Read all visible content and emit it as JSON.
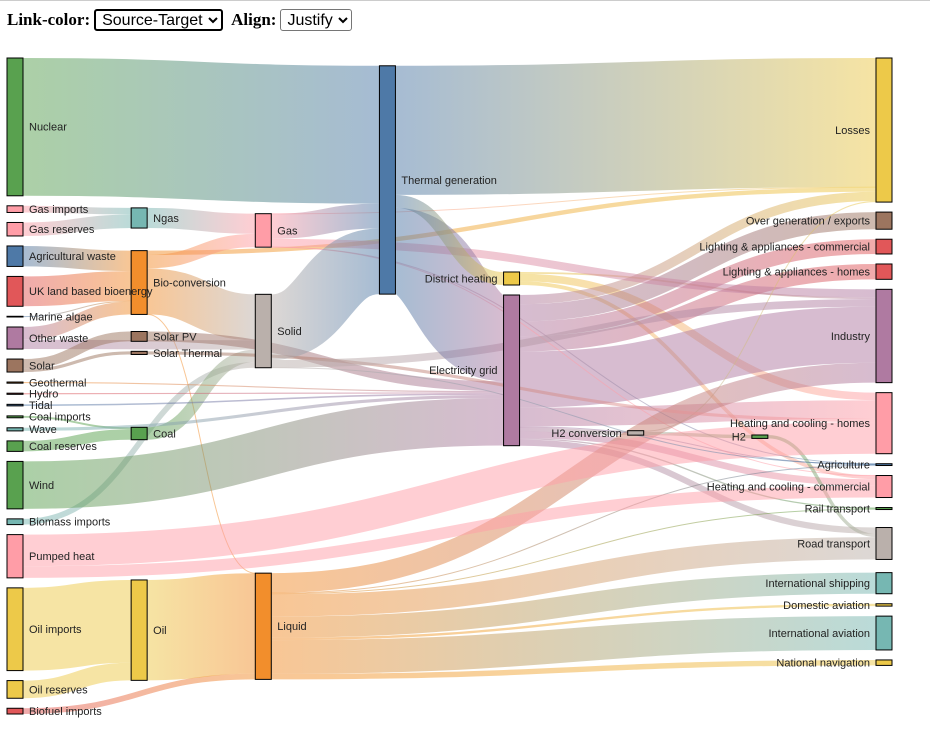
{
  "controls": {
    "link_color_label": "Link-color:",
    "link_color_value": "Source-Target",
    "align_label": "Align:",
    "align_value": "Justify"
  },
  "chart_data": {
    "type": "sankey",
    "link_color": "source-target",
    "align": "justify",
    "nodes": [
      {
        "name": "Nuclear",
        "color": "#59a14f"
      },
      {
        "name": "Gas imports",
        "color": "#ff9da7"
      },
      {
        "name": "Agricultural waste",
        "color": "#4e79a7"
      },
      {
        "name": "Gas reserves",
        "color": "#ff9da7"
      },
      {
        "name": "Marine algae",
        "color": "#4e79a7"
      },
      {
        "name": "UK land based bioenergy",
        "color": "#e15759"
      },
      {
        "name": "Biomass imports",
        "color": "#76b7b2"
      },
      {
        "name": "Other waste",
        "color": "#af7aa1"
      },
      {
        "name": "Coal imports",
        "color": "#59a14f"
      },
      {
        "name": "Coal reserves",
        "color": "#59a14f"
      },
      {
        "name": "Geothermal",
        "color": "#f28e2c"
      },
      {
        "name": "Pumped heat",
        "color": "#ff9da7"
      },
      {
        "name": "Solar",
        "color": "#9c755f"
      },
      {
        "name": "Hydro",
        "color": "#e15759"
      },
      {
        "name": "Tidal",
        "color": "#4e79a7"
      },
      {
        "name": "Wave",
        "color": "#76b7b2"
      },
      {
        "name": "Wind",
        "color": "#59a14f"
      },
      {
        "name": "Biofuel imports",
        "color": "#e15759"
      },
      {
        "name": "Oil imports",
        "color": "#edc949"
      },
      {
        "name": "Oil reserves",
        "color": "#edc949"
      },
      {
        "name": "Ngas",
        "color": "#76b7b2"
      },
      {
        "name": "Bio-conversion",
        "color": "#f28e2c"
      },
      {
        "name": "Coal",
        "color": "#59a14f"
      },
      {
        "name": "Solar PV",
        "color": "#9c755f"
      },
      {
        "name": "Solar Thermal",
        "color": "#9c755f"
      },
      {
        "name": "Oil",
        "color": "#edc949"
      },
      {
        "name": "Gas",
        "color": "#ff9da7"
      },
      {
        "name": "Solid",
        "color": "#bab0ab"
      },
      {
        "name": "Liquid",
        "color": "#f28e2c"
      },
      {
        "name": "Thermal generation",
        "color": "#4e79a7"
      },
      {
        "name": "District heating",
        "color": "#edc949"
      },
      {
        "name": "Electricity grid",
        "color": "#af7aa1"
      },
      {
        "name": "H2 conversion",
        "color": "#bab0ab"
      },
      {
        "name": "H2",
        "color": "#59a14f"
      },
      {
        "name": "Losses",
        "color": "#edc949"
      },
      {
        "name": "Industry",
        "color": "#af7aa1"
      },
      {
        "name": "Heating and cooling - homes",
        "color": "#ff9da7"
      },
      {
        "name": "Heating and cooling - commercial",
        "color": "#ff9da7"
      },
      {
        "name": "Agriculture",
        "color": "#4e79a7"
      },
      {
        "name": "Over generation / exports",
        "color": "#9c755f"
      },
      {
        "name": "Lighting & appliances - commercial",
        "color": "#e15759"
      },
      {
        "name": "Lighting & appliances - homes",
        "color": "#e15759"
      },
      {
        "name": "Rail transport",
        "color": "#59a14f"
      },
      {
        "name": "Road transport",
        "color": "#bab0ab"
      },
      {
        "name": "International shipping",
        "color": "#76b7b2"
      },
      {
        "name": "Domestic aviation",
        "color": "#edc949"
      },
      {
        "name": "International aviation",
        "color": "#76b7b2"
      },
      {
        "name": "National navigation",
        "color": "#edc949"
      }
    ],
    "links": [
      {
        "source": "Agricultural waste",
        "target": "Bio-conversion",
        "value": 124.729
      },
      {
        "source": "Bio-conversion",
        "target": "Liquid",
        "value": 0.597
      },
      {
        "source": "Bio-conversion",
        "target": "Losses",
        "value": 26.862
      },
      {
        "source": "Bio-conversion",
        "target": "Solid",
        "value": 280.322
      },
      {
        "source": "Bio-conversion",
        "target": "Gas",
        "value": 81.144
      },
      {
        "source": "Biofuel imports",
        "target": "Liquid",
        "value": 35
      },
      {
        "source": "Biomass imports",
        "target": "Solid",
        "value": 35
      },
      {
        "source": "Coal imports",
        "target": "Coal",
        "value": 11.606
      },
      {
        "source": "Coal reserves",
        "target": "Coal",
        "value": 63.965
      },
      {
        "source": "Coal",
        "target": "Solid",
        "value": 75.571
      },
      {
        "source": "District heating",
        "target": "Industry",
        "value": 10.639
      },
      {
        "source": "District heating",
        "target": "Heating and cooling - commercial",
        "value": 22.505
      },
      {
        "source": "District heating",
        "target": "Heating and cooling - homes",
        "value": 46.184
      },
      {
        "source": "Electricity grid",
        "target": "Over generation / exports",
        "value": 104.453
      },
      {
        "source": "Electricity grid",
        "target": "Heating and cooling - homes",
        "value": 113.726
      },
      {
        "source": "Electricity grid",
        "target": "H2 conversion",
        "value": 27.14
      },
      {
        "source": "Electricity grid",
        "target": "Industry",
        "value": 342.165
      },
      {
        "source": "Electricity grid",
        "target": "Road transport",
        "value": 37.797
      },
      {
        "source": "Electricity grid",
        "target": "Agriculture",
        "value": 4.412
      },
      {
        "source": "Electricity grid",
        "target": "Heating and cooling - commercial",
        "value": 40.858
      },
      {
        "source": "Electricity grid",
        "target": "Losses",
        "value": 56.691
      },
      {
        "source": "Electricity grid",
        "target": "Rail transport",
        "value": 7.863
      },
      {
        "source": "Electricity grid",
        "target": "Lighting & appliances - commercial",
        "value": 90.008
      },
      {
        "source": "Electricity grid",
        "target": "Lighting & appliances - homes",
        "value": 93.494
      },
      {
        "source": "Gas imports",
        "target": "Ngas",
        "value": 40.719
      },
      {
        "source": "Gas reserves",
        "target": "Ngas",
        "value": 82.233
      },
      {
        "source": "Gas",
        "target": "Heating and cooling - commercial",
        "value": 0.129
      },
      {
        "source": "Gas",
        "target": "Losses",
        "value": 1.401
      },
      {
        "source": "Gas",
        "target": "Thermal generation",
        "value": 151.891
      },
      {
        "source": "Gas",
        "target": "Agriculture",
        "value": 2.096
      },
      {
        "source": "Gas",
        "target": "Industry",
        "value": 48.58
      },
      {
        "source": "Geothermal",
        "target": "Electricity grid",
        "value": 7.013
      },
      {
        "source": "H2 conversion",
        "target": "H2",
        "value": 20.897
      },
      {
        "source": "H2 conversion",
        "target": "Losses",
        "value": 6.242
      },
      {
        "source": "H2",
        "target": "Road transport",
        "value": 20.897
      },
      {
        "source": "Hydro",
        "target": "Electricity grid",
        "value": 6.995
      },
      {
        "source": "Liquid",
        "target": "Industry",
        "value": 121.066
      },
      {
        "source": "Liquid",
        "target": "International shipping",
        "value": 128.69
      },
      {
        "source": "Liquid",
        "target": "Road transport",
        "value": 135.835
      },
      {
        "source": "Liquid",
        "target": "Domestic aviation",
        "value": 14.458
      },
      {
        "source": "Liquid",
        "target": "International aviation",
        "value": 206.267
      },
      {
        "source": "Liquid",
        "target": "Agriculture",
        "value": 3.64
      },
      {
        "source": "Liquid",
        "target": "National navigation",
        "value": 33.218
      },
      {
        "source": "Liquid",
        "target": "Rail transport",
        "value": 4.413
      },
      {
        "source": "Marine algae",
        "target": "Bio-conversion",
        "value": 4.375
      },
      {
        "source": "Ngas",
        "target": "Gas",
        "value": 122.952
      },
      {
        "source": "Nuclear",
        "target": "Thermal generation",
        "value": 839.978
      },
      {
        "source": "Oil imports",
        "target": "Oil",
        "value": 504.287
      },
      {
        "source": "Oil reserves",
        "target": "Oil",
        "value": 107.703
      },
      {
        "source": "Oil",
        "target": "Liquid",
        "value": 611.99
      },
      {
        "source": "Other waste",
        "target": "Solid",
        "value": 56.587
      },
      {
        "source": "Other waste",
        "target": "Bio-conversion",
        "value": 77.81
      },
      {
        "source": "Pumped heat",
        "target": "Heating and cooling - homes",
        "value": 193.026
      },
      {
        "source": "Pumped heat",
        "target": "Heating and cooling - commercial",
        "value": 70.672
      },
      {
        "source": "Solar PV",
        "target": "Electricity grid",
        "value": 59.901
      },
      {
        "source": "Solar Thermal",
        "target": "Heating and cooling - homes",
        "value": 19.263
      },
      {
        "source": "Solar",
        "target": "Solar Thermal",
        "value": 19.263
      },
      {
        "source": "Solar",
        "target": "Solar PV",
        "value": 59.901
      },
      {
        "source": "Solid",
        "target": "Agriculture",
        "value": 0.882
      },
      {
        "source": "Solid",
        "target": "Thermal generation",
        "value": 400.12
      },
      {
        "source": "Solid",
        "target": "Industry",
        "value": 46.477
      },
      {
        "source": "Thermal generation",
        "target": "Electricity grid",
        "value": 525.531
      },
      {
        "source": "Thermal generation",
        "target": "Losses",
        "value": 787.129
      },
      {
        "source": "Thermal generation",
        "target": "District heating",
        "value": 79.329
      },
      {
        "source": "Tidal",
        "target": "Electricity grid",
        "value": 9.452
      },
      {
        "source": "UK land based bioenergy",
        "target": "Bio-conversion",
        "value": 182.01
      },
      {
        "source": "Wave",
        "target": "Electricity grid",
        "value": 19.013
      },
      {
        "source": "Wind",
        "target": "Electricity grid",
        "value": 289.366
      }
    ]
  }
}
